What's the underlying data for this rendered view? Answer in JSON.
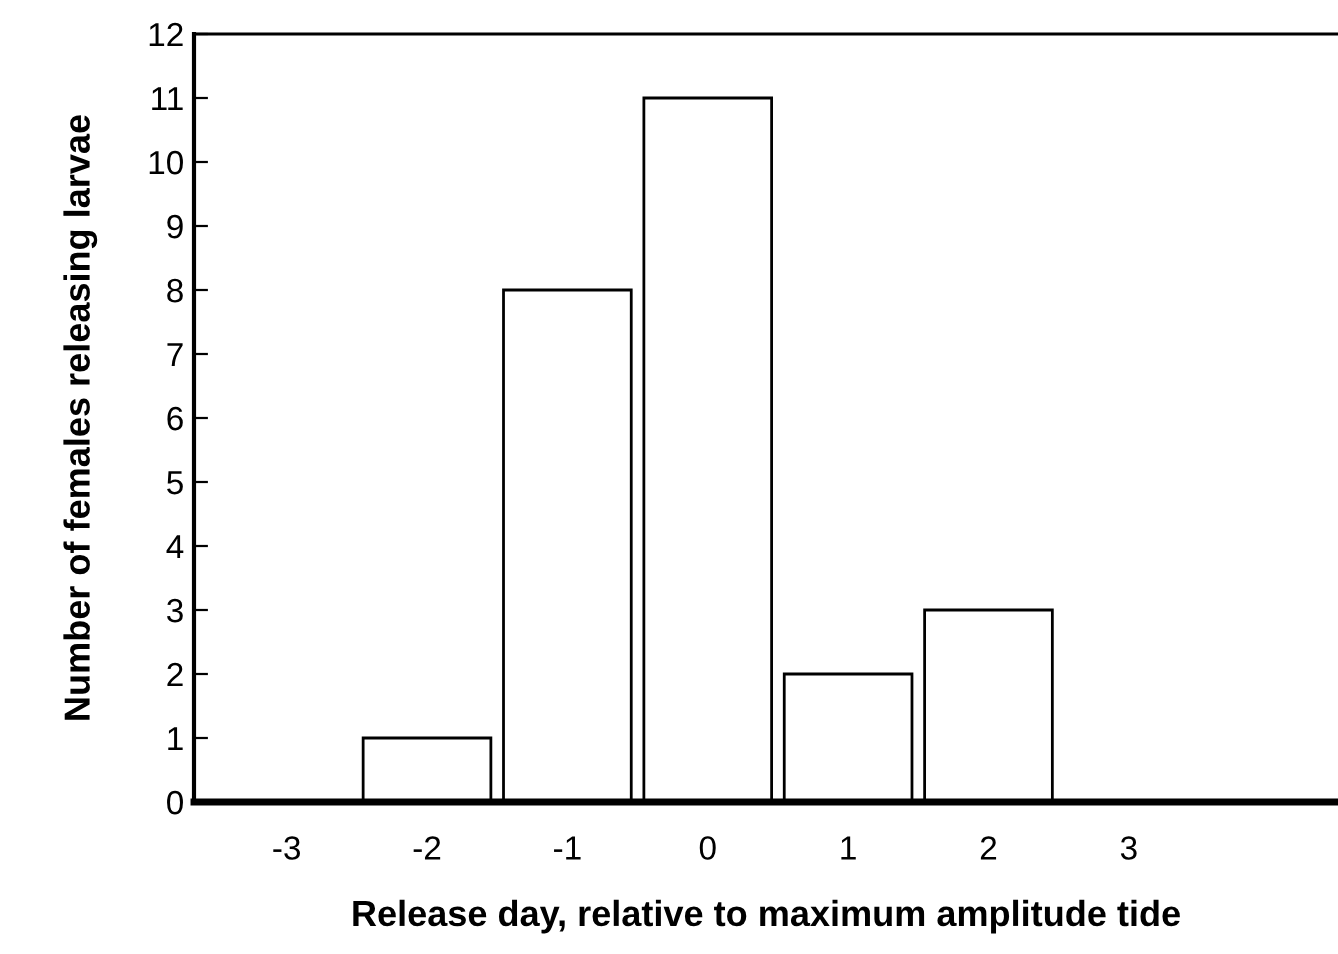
{
  "chart_data": {
    "type": "bar",
    "xlabel": "Release day, relative to maximum amplitude tide",
    "ylabel": "Number of females releasing larvae",
    "categories": [
      "-3",
      "-2",
      "-1",
      "0",
      "1",
      "2",
      "3"
    ],
    "values": [
      0,
      1,
      8,
      11,
      2,
      3,
      0
    ],
    "color": "#ffffff",
    "ylim": [
      0,
      12
    ],
    "yticks": [
      0,
      1,
      2,
      3,
      4,
      5,
      6,
      7,
      8,
      9,
      10,
      11,
      12
    ],
    "grid": false
  }
}
